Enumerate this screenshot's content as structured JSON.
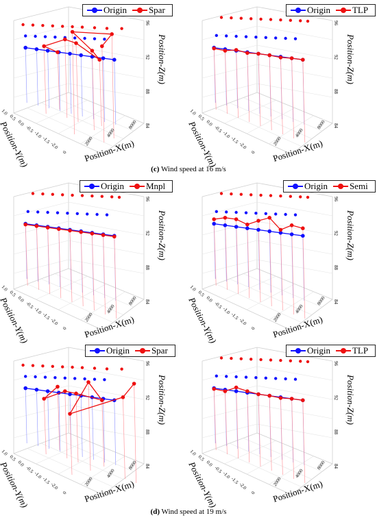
{
  "chart_data": [
    {
      "type": "scatter",
      "legend": [
        "Origin",
        "Spar"
      ],
      "xlabel": "Position-X(m)",
      "ylabel": "Position-Y(m)",
      "zlabel": "Position-Z(m)",
      "x_ticks": [
        "0",
        "2000",
        "4000",
        "8000"
      ],
      "y_ticks": [
        "1.0",
        "0.5",
        "0.0",
        "-0.5",
        "-1.0",
        "-1.5",
        "-2.0"
      ],
      "z_ticks": [
        "84",
        "88",
        "92",
        "96"
      ],
      "origin_path": [
        [
          0.04,
          0.36
        ],
        [
          0.13,
          0.38
        ],
        [
          0.22,
          0.4
        ],
        [
          0.31,
          0.42
        ],
        [
          0.4,
          0.44
        ],
        [
          0.49,
          0.46
        ],
        [
          0.58,
          0.48
        ],
        [
          0.67,
          0.5
        ],
        [
          0.76,
          0.52
        ]
      ],
      "series_path": [
        [
          0.3,
          0.42
        ],
        [
          0.19,
          0.34
        ],
        [
          0.36,
          0.25
        ],
        [
          0.45,
          0.3
        ],
        [
          0.64,
          0.52
        ],
        [
          0.58,
          0.4
        ],
        [
          0.42,
          0.15
        ],
        [
          0.74,
          0.18
        ],
        [
          0.66,
          0.34
        ]
      ],
      "shadow_origin": [
        [
          0.04,
          0.48
        ],
        [
          0.12,
          0.5
        ],
        [
          0.2,
          0.52
        ],
        [
          0.28,
          0.54
        ],
        [
          0.36,
          0.56
        ],
        [
          0.44,
          0.58
        ],
        [
          0.52,
          0.6
        ],
        [
          0.6,
          0.62
        ],
        [
          0.68,
          0.64
        ]
      ],
      "shadow_series": [
        [
          0.02,
          0.8
        ],
        [
          0.1,
          0.82
        ],
        [
          0.18,
          0.84
        ],
        [
          0.26,
          0.86
        ],
        [
          0.34,
          0.88
        ],
        [
          0.42,
          0.9
        ],
        [
          0.5,
          0.92
        ],
        [
          0.6,
          0.95
        ],
        [
          0.7,
          0.98
        ],
        [
          0.82,
          0.99
        ]
      ]
    },
    {
      "type": "scatter",
      "legend": [
        "Origin",
        "TLP"
      ],
      "xlabel": "Position-X(m)",
      "ylabel": "Position-Y(m)",
      "zlabel": "Position-Z(m)",
      "x_ticks": [
        "0",
        "2000",
        "4000",
        "8000"
      ],
      "y_ticks": [
        "1.0",
        "0.5",
        "0.0",
        "-0.5",
        "-1.0",
        "-1.5",
        "-2.0"
      ],
      "z_ticks": [
        "84",
        "88",
        "92",
        "96"
      ],
      "origin_path": [
        [
          0.04,
          0.36
        ],
        [
          0.13,
          0.38
        ],
        [
          0.22,
          0.4
        ],
        [
          0.31,
          0.42
        ],
        [
          0.4,
          0.44
        ],
        [
          0.49,
          0.46
        ],
        [
          0.58,
          0.48
        ],
        [
          0.67,
          0.5
        ],
        [
          0.76,
          0.52
        ]
      ],
      "series_path": [
        [
          0.04,
          0.37
        ],
        [
          0.13,
          0.4
        ],
        [
          0.22,
          0.39
        ],
        [
          0.31,
          0.43
        ],
        [
          0.4,
          0.44
        ],
        [
          0.49,
          0.46
        ],
        [
          0.58,
          0.49
        ],
        [
          0.67,
          0.5
        ],
        [
          0.76,
          0.52
        ]
      ],
      "shadow_origin": [
        [
          0.06,
          0.46
        ],
        [
          0.14,
          0.48
        ],
        [
          0.22,
          0.5
        ],
        [
          0.3,
          0.52
        ],
        [
          0.38,
          0.54
        ],
        [
          0.46,
          0.56
        ],
        [
          0.54,
          0.58
        ],
        [
          0.62,
          0.6
        ],
        [
          0.7,
          0.62
        ]
      ],
      "shadow_series": [
        [
          0.1,
          0.45
        ],
        [
          0.18,
          0.47
        ],
        [
          0.26,
          0.49
        ],
        [
          0.34,
          0.51
        ],
        [
          0.42,
          0.53
        ],
        [
          0.5,
          0.55
        ],
        [
          0.58,
          0.57
        ],
        [
          0.66,
          0.59
        ],
        [
          0.74,
          0.61
        ],
        [
          0.8,
          0.63
        ]
      ]
    },
    {
      "type": "scatter",
      "legend": [
        "Origin",
        "Mnpl"
      ],
      "xlabel": "Position-X(m)",
      "ylabel": "Position-Y(m)",
      "zlabel": "Position-Z(m)",
      "x_ticks": [
        "0",
        "2000",
        "4000",
        "8000"
      ],
      "y_ticks": [
        "1.0",
        "0.5",
        "0.0",
        "-0.5",
        "-1.0",
        "-1.5",
        "-2.0"
      ],
      "z_ticks": [
        "84",
        "88",
        "92",
        "96"
      ],
      "origin_path": [
        [
          0.04,
          0.36
        ],
        [
          0.13,
          0.38
        ],
        [
          0.22,
          0.4
        ],
        [
          0.31,
          0.42
        ],
        [
          0.4,
          0.44
        ],
        [
          0.49,
          0.46
        ],
        [
          0.58,
          0.48
        ],
        [
          0.67,
          0.5
        ],
        [
          0.76,
          0.52
        ]
      ],
      "series_path": [
        [
          0.04,
          0.37
        ],
        [
          0.13,
          0.39
        ],
        [
          0.22,
          0.41
        ],
        [
          0.31,
          0.43
        ],
        [
          0.4,
          0.45
        ],
        [
          0.49,
          0.47
        ],
        [
          0.58,
          0.49
        ],
        [
          0.67,
          0.51
        ],
        [
          0.76,
          0.53
        ]
      ],
      "shadow_origin": [
        [
          0.06,
          0.46
        ],
        [
          0.14,
          0.48
        ],
        [
          0.22,
          0.5
        ],
        [
          0.3,
          0.52
        ],
        [
          0.38,
          0.54
        ],
        [
          0.46,
          0.56
        ],
        [
          0.54,
          0.58
        ],
        [
          0.62,
          0.6
        ],
        [
          0.7,
          0.62
        ]
      ],
      "shadow_series": [
        [
          0.1,
          0.45
        ],
        [
          0.18,
          0.47
        ],
        [
          0.26,
          0.49
        ],
        [
          0.34,
          0.51
        ],
        [
          0.42,
          0.53
        ],
        [
          0.5,
          0.55
        ],
        [
          0.58,
          0.57
        ],
        [
          0.66,
          0.59
        ],
        [
          0.74,
          0.61
        ],
        [
          0.8,
          0.63
        ]
      ]
    },
    {
      "type": "scatter",
      "legend": [
        "Origin",
        "Semi"
      ],
      "xlabel": "Position-X(m)",
      "ylabel": "Position-Y(m)",
      "zlabel": "Position-Z(m)",
      "x_ticks": [
        "0",
        "2000",
        "4000",
        "8000"
      ],
      "y_ticks": [
        "1.0",
        "0.5",
        "0.0",
        "-0.5",
        "-1.0",
        "-1.5",
        "-2.0"
      ],
      "z_ticks": [
        "84",
        "88",
        "92",
        "96"
      ],
      "origin_path": [
        [
          0.04,
          0.36
        ],
        [
          0.13,
          0.38
        ],
        [
          0.22,
          0.4
        ],
        [
          0.31,
          0.42
        ],
        [
          0.4,
          0.44
        ],
        [
          0.49,
          0.46
        ],
        [
          0.58,
          0.48
        ],
        [
          0.67,
          0.5
        ],
        [
          0.76,
          0.52
        ]
      ],
      "series_path": [
        [
          0.04,
          0.3
        ],
        [
          0.13,
          0.28
        ],
        [
          0.22,
          0.3
        ],
        [
          0.31,
          0.37
        ],
        [
          0.4,
          0.32
        ],
        [
          0.49,
          0.28
        ],
        [
          0.58,
          0.44
        ],
        [
          0.67,
          0.38
        ],
        [
          0.76,
          0.42
        ]
      ],
      "shadow_origin": [
        [
          0.06,
          0.46
        ],
        [
          0.14,
          0.48
        ],
        [
          0.22,
          0.5
        ],
        [
          0.3,
          0.52
        ],
        [
          0.38,
          0.54
        ],
        [
          0.46,
          0.56
        ],
        [
          0.54,
          0.58
        ],
        [
          0.62,
          0.6
        ],
        [
          0.7,
          0.62
        ]
      ],
      "shadow_series": [
        [
          0.1,
          0.45
        ],
        [
          0.18,
          0.47
        ],
        [
          0.26,
          0.49
        ],
        [
          0.34,
          0.51
        ],
        [
          0.42,
          0.53
        ],
        [
          0.5,
          0.55
        ],
        [
          0.58,
          0.57
        ],
        [
          0.66,
          0.59
        ],
        [
          0.74,
          0.61
        ],
        [
          0.8,
          0.63
        ]
      ]
    },
    {
      "type": "scatter",
      "legend": [
        "Origin",
        "Spar"
      ],
      "xlabel": "Position-X(m)",
      "ylabel": "Position-Y(m)",
      "zlabel": "Position-Z(m)",
      "x_ticks": [
        "0",
        "2000",
        "4000",
        "8000"
      ],
      "y_ticks": [
        "1.0",
        "0.5",
        "0.0",
        "-0.5",
        "-1.0",
        "-1.5",
        "-2.0"
      ],
      "z_ticks": [
        "84",
        "88",
        "92",
        "96"
      ],
      "origin_path": [
        [
          0.04,
          0.36
        ],
        [
          0.13,
          0.38
        ],
        [
          0.22,
          0.4
        ],
        [
          0.31,
          0.42
        ],
        [
          0.4,
          0.44
        ],
        [
          0.49,
          0.46
        ],
        [
          0.58,
          0.48
        ],
        [
          0.67,
          0.5
        ],
        [
          0.76,
          0.52
        ]
      ],
      "series_path": [
        [
          0.3,
          0.34
        ],
        [
          0.19,
          0.5
        ],
        [
          0.36,
          0.4
        ],
        [
          0.45,
          0.43
        ],
        [
          0.66,
          0.52
        ],
        [
          0.55,
          0.28
        ],
        [
          0.4,
          0.7
        ],
        [
          0.83,
          0.48
        ],
        [
          0.92,
          0.3
        ]
      ],
      "shadow_origin": [
        [
          0.04,
          0.48
        ],
        [
          0.12,
          0.5
        ],
        [
          0.2,
          0.52
        ],
        [
          0.28,
          0.54
        ],
        [
          0.36,
          0.56
        ],
        [
          0.44,
          0.58
        ],
        [
          0.52,
          0.6
        ],
        [
          0.6,
          0.62
        ],
        [
          0.68,
          0.64
        ]
      ],
      "shadow_series": [
        [
          0.02,
          0.8
        ],
        [
          0.1,
          0.82
        ],
        [
          0.18,
          0.84
        ],
        [
          0.26,
          0.86
        ],
        [
          0.34,
          0.88
        ],
        [
          0.42,
          0.9
        ],
        [
          0.5,
          0.92
        ],
        [
          0.6,
          0.95
        ],
        [
          0.7,
          0.98
        ],
        [
          0.82,
          0.99
        ]
      ]
    },
    {
      "type": "scatter",
      "legend": [
        "Origin",
        "TLP"
      ],
      "xlabel": "Position-X(m)",
      "ylabel": "Position-Y(m)",
      "zlabel": "Position-Z(m)",
      "x_ticks": [
        "0",
        "2000",
        "4000",
        "8000"
      ],
      "y_ticks": [
        "1.0",
        "0.5",
        "0.0",
        "-0.5",
        "-1.0",
        "-1.5",
        "-2.0"
      ],
      "z_ticks": [
        "84",
        "88",
        "92",
        "96"
      ],
      "origin_path": [
        [
          0.04,
          0.36
        ],
        [
          0.13,
          0.38
        ],
        [
          0.22,
          0.4
        ],
        [
          0.31,
          0.42
        ],
        [
          0.4,
          0.44
        ],
        [
          0.49,
          0.46
        ],
        [
          0.58,
          0.48
        ],
        [
          0.67,
          0.5
        ],
        [
          0.76,
          0.52
        ]
      ],
      "series_path": [
        [
          0.04,
          0.37
        ],
        [
          0.13,
          0.4
        ],
        [
          0.22,
          0.35
        ],
        [
          0.31,
          0.4
        ],
        [
          0.4,
          0.44
        ],
        [
          0.49,
          0.46
        ],
        [
          0.58,
          0.49
        ],
        [
          0.67,
          0.5
        ],
        [
          0.76,
          0.52
        ]
      ],
      "shadow_origin": [
        [
          0.06,
          0.46
        ],
        [
          0.14,
          0.48
        ],
        [
          0.22,
          0.5
        ],
        [
          0.3,
          0.52
        ],
        [
          0.38,
          0.54
        ],
        [
          0.46,
          0.56
        ],
        [
          0.54,
          0.58
        ],
        [
          0.62,
          0.6
        ],
        [
          0.7,
          0.62
        ]
      ],
      "shadow_series": [
        [
          0.1,
          0.45
        ],
        [
          0.18,
          0.47
        ],
        [
          0.26,
          0.49
        ],
        [
          0.34,
          0.51
        ],
        [
          0.42,
          0.53
        ],
        [
          0.5,
          0.55
        ],
        [
          0.58,
          0.57
        ],
        [
          0.66,
          0.59
        ],
        [
          0.74,
          0.61
        ],
        [
          0.8,
          0.63
        ]
      ]
    }
  ],
  "captions": [
    {
      "letter": "(c)",
      "text": " Wind speed at 16 m/s"
    },
    {
      "letter": "(d)",
      "text": " Wind speed at 19 m/s"
    }
  ],
  "colors": {
    "origin": "#1010ff",
    "series": "#ee1010",
    "origin_drop": "#9aa0ff",
    "series_drop": "#ff9aa0",
    "grid": "#cfcfcf"
  }
}
